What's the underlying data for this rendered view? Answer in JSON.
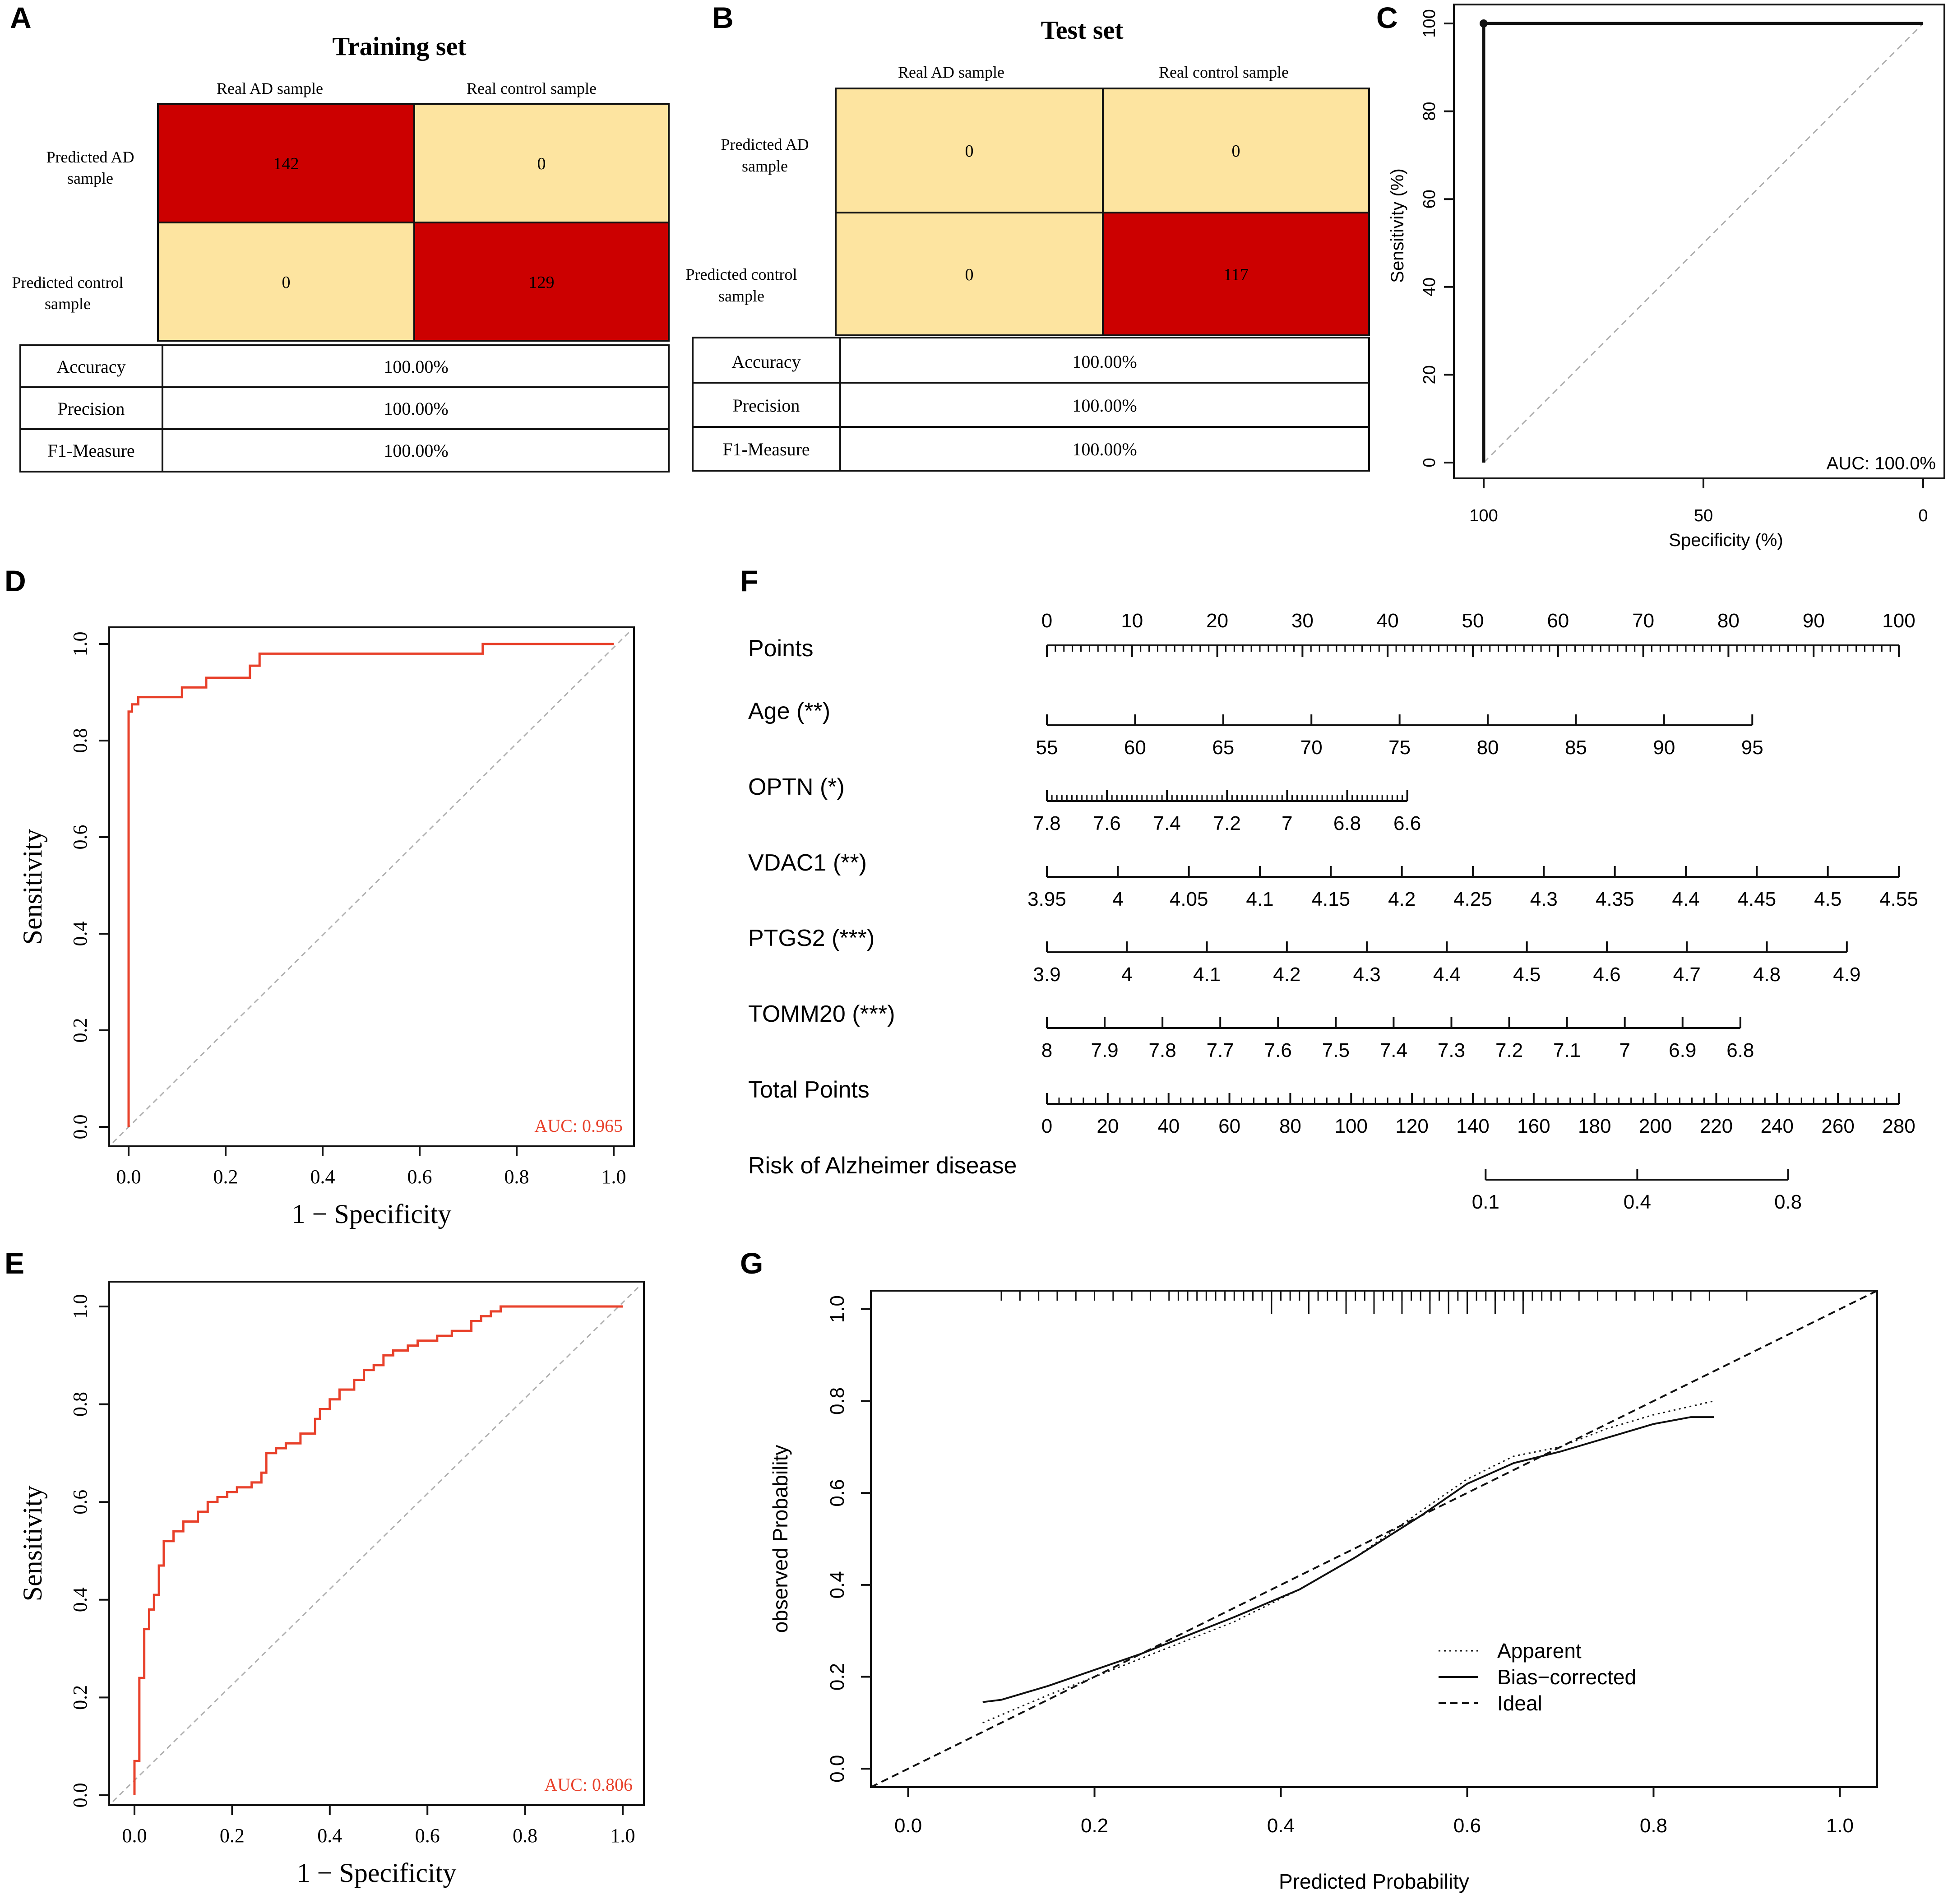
{
  "panels": {
    "A": {
      "letter": "A",
      "title": "Training set",
      "col_headers": [
        "Real AD sample",
        "Real control sample"
      ],
      "row_headers": [
        [
          "Predicted AD",
          "sample"
        ],
        [
          "Predicted control",
          "sample"
        ]
      ],
      "cells": [
        "142",
        "0",
        "0",
        "129"
      ],
      "metrics": [
        {
          "name": "Accuracy",
          "value": "100.00%"
        },
        {
          "name": "Precision",
          "value": "100.00%"
        },
        {
          "name": "F1-Measure",
          "value": "100.00%"
        }
      ]
    },
    "B": {
      "letter": "B",
      "title": "Test set",
      "col_headers": [
        "Real AD sample",
        "Real control sample"
      ],
      "row_headers": [
        [
          "Predicted AD",
          "sample"
        ],
        [
          "Predicted control",
          "sample"
        ]
      ],
      "cells": [
        "0",
        "0",
        "0",
        "117"
      ],
      "metrics": [
        {
          "name": "Accuracy",
          "value": "100.00%"
        },
        {
          "name": "Precision",
          "value": "100.00%"
        },
        {
          "name": "F1-Measure",
          "value": "100.00%"
        }
      ]
    },
    "C": {
      "letter": "C"
    },
    "D": {
      "letter": "D"
    },
    "E": {
      "letter": "E"
    },
    "F": {
      "letter": "F"
    },
    "G": {
      "letter": "G"
    }
  },
  "colors": {
    "hot": "#cc0000",
    "cold": "#fde4a0",
    "roc_red": "#e8402a",
    "grid_gray": "#b0b0b0",
    "ink": "#111111"
  },
  "chart_data": [
    {
      "id": "C",
      "type": "line",
      "xlabel": "Specificity (%)",
      "ylabel": "Sensitivity (%)",
      "xlim": [
        100,
        0
      ],
      "ylim": [
        0,
        100
      ],
      "x_ticks": [
        100,
        50,
        0
      ],
      "y_ticks": [
        0,
        20,
        40,
        60,
        80,
        100
      ],
      "annotation": "AUC: 100.0%",
      "series": [
        {
          "name": "ROC",
          "x": [
            100,
            100,
            0
          ],
          "y": [
            0,
            100,
            100
          ]
        }
      ],
      "point": {
        "x": 100,
        "y": 100
      }
    },
    {
      "id": "D",
      "type": "line",
      "xlabel": "1 − Specificity",
      "ylabel": "Sensitivity",
      "xlim": [
        0,
        1
      ],
      "ylim": [
        0,
        1
      ],
      "x_ticks": [
        "0.0",
        "0.2",
        "0.4",
        "0.6",
        "0.8",
        "1.0"
      ],
      "y_ticks": [
        "0.0",
        "0.2",
        "0.4",
        "0.6",
        "0.8",
        "1.0"
      ],
      "annotation": "AUC: 0.965",
      "series": [
        {
          "name": "ROC",
          "x": [
            0,
            0,
            0.007,
            0.007,
            0.02,
            0.02,
            0.11,
            0.11,
            0.16,
            0.16,
            0.25,
            0.25,
            0.27,
            0.27,
            0.73,
            0.73,
            1.0
          ],
          "y": [
            0,
            0.86,
            0.86,
            0.875,
            0.875,
            0.89,
            0.89,
            0.91,
            0.91,
            0.93,
            0.93,
            0.955,
            0.955,
            0.98,
            0.98,
            1.0,
            1.0
          ]
        }
      ]
    },
    {
      "id": "E",
      "type": "line",
      "xlabel": "1 − Specificity",
      "ylabel": "Sensitivity",
      "xlim": [
        0,
        1
      ],
      "ylim": [
        0,
        1
      ],
      "x_ticks": [
        "0.0",
        "0.2",
        "0.4",
        "0.6",
        "0.8",
        "1.0"
      ],
      "y_ticks": [
        "0.0",
        "0.2",
        "0.4",
        "0.6",
        "0.8",
        "1.0"
      ],
      "annotation": "AUC: 0.806",
      "series": [
        {
          "name": "ROC",
          "x": [
            0,
            0,
            0.01,
            0.01,
            0.02,
            0.02,
            0.03,
            0.03,
            0.04,
            0.04,
            0.05,
            0.05,
            0.06,
            0.06,
            0.08,
            0.08,
            0.1,
            0.1,
            0.13,
            0.13,
            0.15,
            0.15,
            0.17,
            0.17,
            0.19,
            0.19,
            0.21,
            0.21,
            0.24,
            0.24,
            0.26,
            0.26,
            0.27,
            0.27,
            0.29,
            0.29,
            0.31,
            0.31,
            0.34,
            0.34,
            0.37,
            0.37,
            0.38,
            0.38,
            0.4,
            0.4,
            0.42,
            0.42,
            0.45,
            0.45,
            0.47,
            0.47,
            0.49,
            0.49,
            0.51,
            0.51,
            0.53,
            0.53,
            0.56,
            0.56,
            0.58,
            0.58,
            0.62,
            0.62,
            0.65,
            0.65,
            0.69,
            0.69,
            0.71,
            0.71,
            0.73,
            0.73,
            0.75,
            0.75,
            1.0
          ],
          "y": [
            0,
            0.07,
            0.07,
            0.24,
            0.24,
            0.34,
            0.34,
            0.38,
            0.38,
            0.41,
            0.41,
            0.47,
            0.47,
            0.52,
            0.52,
            0.54,
            0.54,
            0.56,
            0.56,
            0.58,
            0.58,
            0.6,
            0.6,
            0.61,
            0.61,
            0.62,
            0.62,
            0.63,
            0.63,
            0.64,
            0.64,
            0.66,
            0.66,
            0.7,
            0.7,
            0.71,
            0.71,
            0.72,
            0.72,
            0.74,
            0.74,
            0.77,
            0.77,
            0.79,
            0.79,
            0.81,
            0.81,
            0.83,
            0.83,
            0.85,
            0.85,
            0.87,
            0.87,
            0.88,
            0.88,
            0.9,
            0.9,
            0.91,
            0.91,
            0.92,
            0.92,
            0.93,
            0.93,
            0.94,
            0.94,
            0.95,
            0.95,
            0.97,
            0.97,
            0.98,
            0.98,
            0.99,
            0.99,
            1.0,
            1.0
          ]
        }
      ]
    },
    {
      "id": "F",
      "type": "nomogram",
      "scale_min": 0,
      "scale_max": 100,
      "rows": [
        {
          "label": "Points",
          "ticks": [
            "0",
            "10",
            "20",
            "30",
            "40",
            "50",
            "60",
            "70",
            "80",
            "90",
            "100"
          ],
          "start": 0,
          "end": 100,
          "labels_above": true,
          "minor": 1
        },
        {
          "label": "Age (**)",
          "ticks": [
            "55",
            "60",
            "65",
            "70",
            "75",
            "80",
            "85",
            "90",
            "95"
          ],
          "start": 0,
          "end": 82.8,
          "minor": 0
        },
        {
          "label": "OPTN (*)",
          "ticks": [
            "7.8",
            "7.6",
            "7.4",
            "7.2",
            "7",
            "6.8",
            "6.6"
          ],
          "start": 0,
          "end": 42.3,
          "minor": 12
        },
        {
          "label": "VDAC1 (**)",
          "ticks": [
            "3.95",
            "4",
            "4.05",
            "4.1",
            "4.15",
            "4.2",
            "4.25",
            "4.3",
            "4.35",
            "4.4",
            "4.45",
            "4.5",
            "4.55"
          ],
          "start": 0,
          "end": 100,
          "minor": 0
        },
        {
          "label": "PTGS2 (***)",
          "ticks": [
            "3.9",
            "4",
            "4.1",
            "4.2",
            "4.3",
            "4.4",
            "4.5",
            "4.6",
            "4.7",
            "4.8",
            "4.9"
          ],
          "start": 0,
          "end": 93.9,
          "minor": 0
        },
        {
          "label": "TOMM20 (***)",
          "ticks": [
            "8",
            "7.9",
            "7.8",
            "7.7",
            "7.6",
            "7.5",
            "7.4",
            "7.3",
            "7.2",
            "7.1",
            "7",
            "6.9",
            "6.8"
          ],
          "start": 0,
          "end": 81.4,
          "minor": 0
        },
        {
          "label": "Total Points",
          "ticks": [
            "0",
            "20",
            "40",
            "60",
            "80",
            "100",
            "120",
            "140",
            "160",
            "180",
            "200",
            "220",
            "240",
            "260",
            "280"
          ],
          "start": 0,
          "end": 100,
          "minor": 5
        },
        {
          "label": "Risk of Alzheimer disease",
          "ticks": [
            "0.1",
            "0.4",
            "0.8"
          ],
          "tick_pos": [
            51.5,
            69.3,
            87.0
          ],
          "start": 51.5,
          "end": 87.0,
          "minor": 0
        }
      ]
    },
    {
      "id": "G",
      "type": "line",
      "xlabel": "Predicted Probability",
      "ylabel": "observed Probability",
      "xlim": [
        -0.04,
        1.04
      ],
      "ylim": [
        -0.04,
        1.04
      ],
      "x_ticks": [
        "0.0",
        "0.2",
        "0.4",
        "0.6",
        "0.8",
        "1.0"
      ],
      "y_ticks": [
        "0.0",
        "0.2",
        "0.4",
        "0.6",
        "0.8",
        "1.0"
      ],
      "legend": [
        "Apparent",
        "Bias−corrected",
        "Ideal"
      ],
      "series": [
        {
          "name": "Apparent",
          "x": [
            0.08,
            0.15,
            0.25,
            0.35,
            0.42,
            0.48,
            0.55,
            0.6,
            0.65,
            0.7,
            0.75,
            0.8,
            0.865
          ],
          "y": [
            0.1,
            0.16,
            0.24,
            0.32,
            0.39,
            0.46,
            0.56,
            0.63,
            0.68,
            0.7,
            0.74,
            0.77,
            0.8
          ]
        },
        {
          "name": "Bias-corrected",
          "x": [
            0.08,
            0.1,
            0.15,
            0.25,
            0.35,
            0.42,
            0.48,
            0.55,
            0.6,
            0.65,
            0.7,
            0.75,
            0.8,
            0.84,
            0.865
          ],
          "y": [
            0.145,
            0.15,
            0.18,
            0.25,
            0.33,
            0.39,
            0.46,
            0.55,
            0.62,
            0.665,
            0.69,
            0.72,
            0.75,
            0.765,
            0.765
          ]
        },
        {
          "name": "Ideal",
          "x": [
            -0.04,
            1.04
          ],
          "y": [
            -0.04,
            1.04
          ]
        }
      ],
      "rug": [
        0.1,
        0.12,
        0.14,
        0.16,
        0.18,
        0.2,
        0.22,
        0.24,
        0.26,
        0.28,
        0.29,
        0.3,
        0.31,
        0.32,
        0.33,
        0.34,
        0.35,
        0.36,
        0.37,
        0.38,
        0.39,
        0.4,
        0.41,
        0.42,
        0.43,
        0.44,
        0.45,
        0.46,
        0.47,
        0.48,
        0.49,
        0.5,
        0.51,
        0.52,
        0.53,
        0.54,
        0.55,
        0.56,
        0.57,
        0.58,
        0.59,
        0.6,
        0.61,
        0.62,
        0.63,
        0.64,
        0.65,
        0.66,
        0.67,
        0.68,
        0.69,
        0.7,
        0.72,
        0.74,
        0.76,
        0.78,
        0.8,
        0.82,
        0.84,
        0.86,
        0.9
      ],
      "rug_tall": [
        0.39,
        0.43,
        0.47,
        0.5,
        0.53,
        0.56,
        0.58,
        0.6,
        0.63,
        0.66
      ]
    }
  ]
}
